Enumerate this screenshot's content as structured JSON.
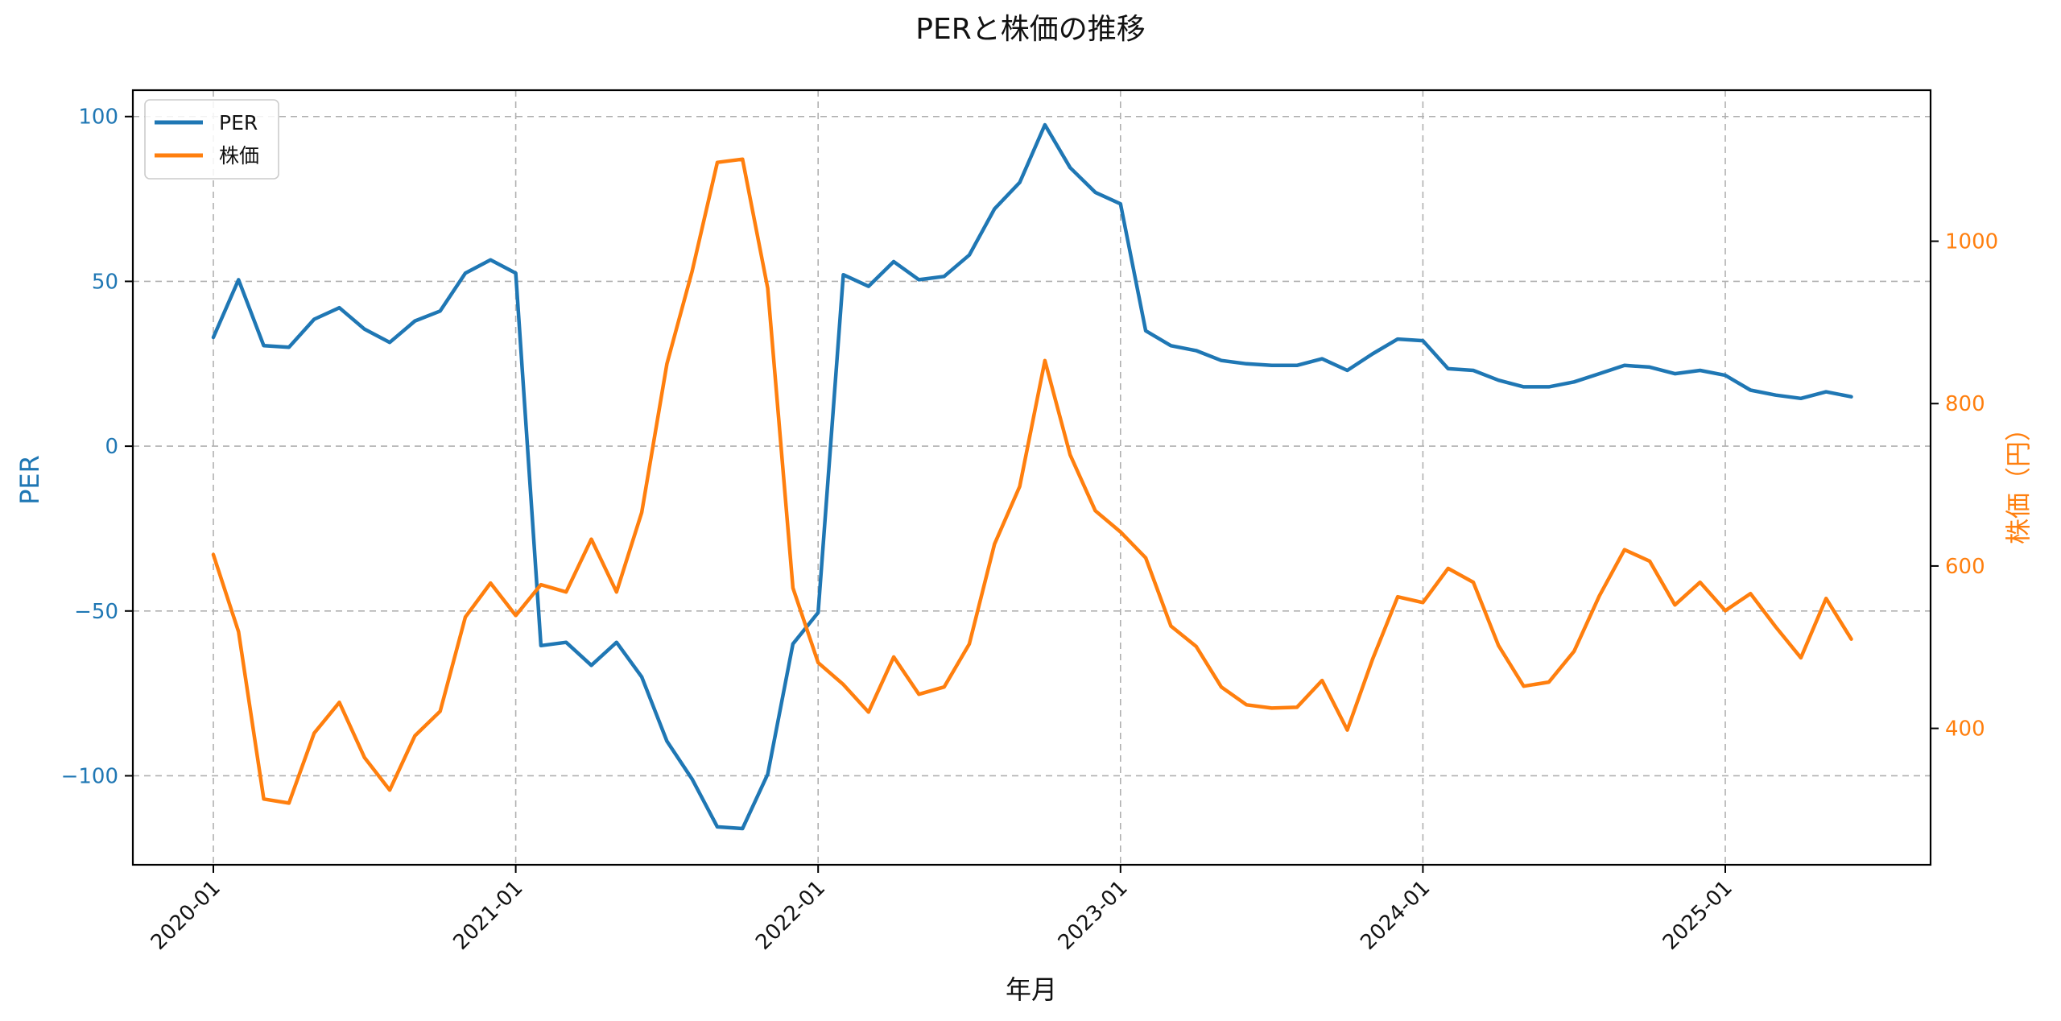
{
  "chart_data": {
    "type": "line",
    "title": "PERと株価の推移",
    "xlabel": "年月",
    "ylabel_left": "PER",
    "ylabel_right": "株価（円）",
    "colors": {
      "per": "#1f77b4",
      "price": "#ff7f0e"
    },
    "x_start": "2020-01",
    "x_step": "month",
    "x_ticks": [
      "2020-01",
      "2021-01",
      "2022-01",
      "2023-01",
      "2024-01",
      "2025-01"
    ],
    "y_left_lim": [
      -127,
      108
    ],
    "y_left_ticks": [
      100,
      50,
      0,
      -50,
      -100
    ],
    "y_left_tick_labels": [
      "100",
      "50",
      "0",
      "−50",
      "−100"
    ],
    "y_right_lim": [
      232,
      1186
    ],
    "y_right_ticks": [
      1000,
      800,
      600,
      400
    ],
    "y_right_tick_labels": [
      "1000",
      "800",
      "600",
      "400"
    ],
    "grid": true,
    "legend_position": "top-left",
    "series": [
      {
        "name": "PER",
        "axis": "left",
        "values": [
          33,
          50.5,
          30.5,
          30,
          38.5,
          42,
          35.5,
          31.5,
          38,
          41,
          52.5,
          56.5,
          52.5,
          -60.5,
          -59.5,
          -66.5,
          -59.5,
          -70,
          -89.5,
          -101,
          -115.5,
          -116,
          -99.5,
          -60,
          -50.5,
          52,
          48.5,
          56,
          50.5,
          51.5,
          58,
          72,
          80,
          97.5,
          84.5,
          77,
          73.5,
          35,
          30.5,
          29,
          26,
          25,
          24.5,
          24.5,
          26.5,
          23,
          28,
          32.5,
          32,
          23.5,
          23,
          20,
          18,
          18,
          19.5,
          22,
          24.5,
          24,
          22,
          23,
          21.5,
          17,
          15.5,
          14.5,
          16.5,
          15
        ]
      },
      {
        "name": "株価",
        "axis": "right",
        "values": [
          614,
          519,
          313,
          308,
          394,
          432,
          364,
          324,
          391,
          421,
          537,
          579,
          539,
          577,
          568,
          633,
          568,
          666,
          849,
          963,
          1097,
          1101,
          942,
          573,
          481,
          454,
          420,
          488,
          442,
          451,
          504,
          627,
          698,
          853,
          737,
          668,
          642,
          610,
          526,
          501,
          451,
          429,
          425,
          426,
          459,
          398,
          485,
          562,
          555,
          597,
          580,
          502,
          452,
          457,
          495,
          563,
          620,
          606,
          552,
          580,
          545,
          566,
          525,
          487,
          560,
          510
        ]
      }
    ]
  }
}
